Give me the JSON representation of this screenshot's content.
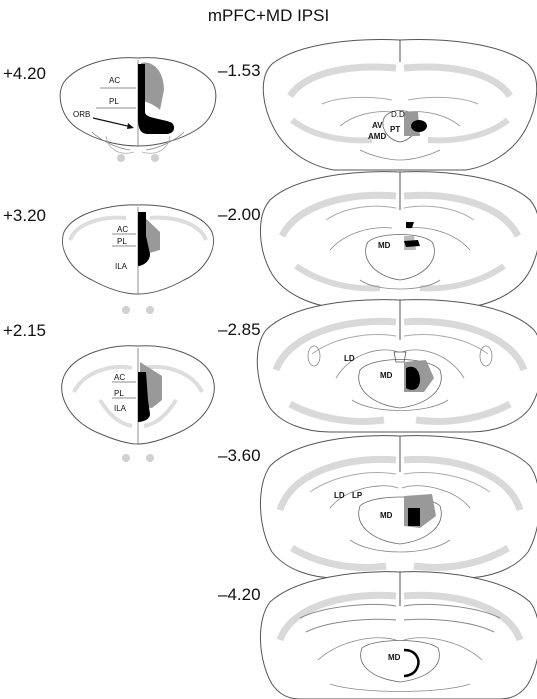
{
  "title": "mPFC+MD IPSI",
  "sections": {
    "pfc": [
      {
        "coordinate": "+4.20",
        "regions": [
          "AC",
          "PL",
          "ORB"
        ]
      },
      {
        "coordinate": "+3.20",
        "regions": [
          "AC",
          "PL",
          "ILA"
        ]
      },
      {
        "coordinate": "+2.15",
        "regions": [
          "AC",
          "PL",
          "ILA"
        ]
      }
    ],
    "thalamus": [
      {
        "coordinate": "–1.53",
        "regions": [
          "AV",
          "AMD",
          "PT",
          "D.D"
        ]
      },
      {
        "coordinate": "–2.00",
        "regions": [
          "MD"
        ]
      },
      {
        "coordinate": "–2.85",
        "regions": [
          "LD",
          "MD"
        ]
      },
      {
        "coordinate": "–3.60",
        "regions": [
          "LD",
          "LP",
          "MD"
        ]
      },
      {
        "coordinate": "–4.20",
        "regions": [
          "MD"
        ]
      }
    ]
  },
  "colors": {
    "lesion_core": "#000000",
    "lesion_extent": "#999999",
    "atlas_fill": "#d9d9d9",
    "outline": "#555555"
  }
}
